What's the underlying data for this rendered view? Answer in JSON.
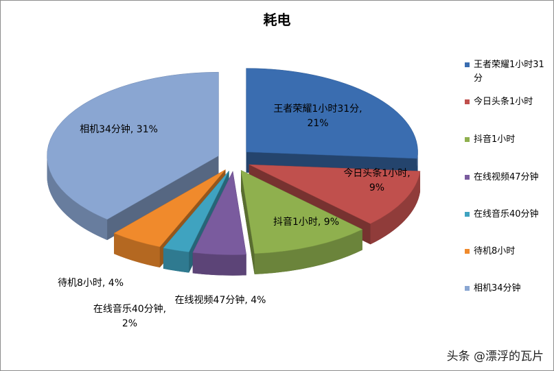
{
  "chart_data": {
    "type": "pie",
    "title": "耗电",
    "categories": [
      "王者荣耀1小时31分",
      "今日头条1小时",
      "抖音1小时",
      "在线视频47分钟",
      "在线音乐40分钟",
      "待机8小时",
      "相机34分钟"
    ],
    "values": [
      21,
      9,
      9,
      4,
      2,
      4,
      31
    ],
    "value_labels": [
      "王者荣耀1小时31分, 21%",
      "今日头条1小时, 9%",
      "抖音1小时, 9%",
      "在线视频47分钟, 4%",
      "在线音乐40分钟, 2%",
      "待机8小时, 4%",
      "相机34分钟, 31%"
    ],
    "colors": [
      "#3a6db0",
      "#c0504d",
      "#8fb04e",
      "#7a5b9e",
      "#3fa3c0",
      "#f08a2c",
      "#8aa6d2"
    ],
    "legend": "right"
  },
  "watermark": "头条 @漂浮的瓦片"
}
